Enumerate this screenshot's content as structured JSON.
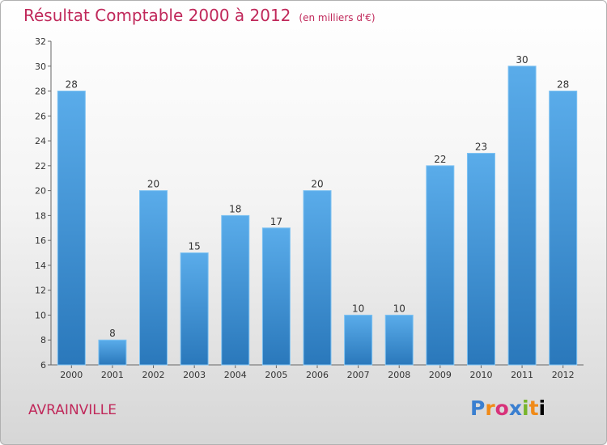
{
  "chart_data": {
    "type": "bar",
    "title": "Résultat Comptable 2000 à 2012",
    "subtitle": "(en milliers d'€)",
    "categories": [
      "2000",
      "2001",
      "2002",
      "2003",
      "2004",
      "2005",
      "2006",
      "2007",
      "2008",
      "2009",
      "2010",
      "2011",
      "2012"
    ],
    "values": [
      28,
      8,
      20,
      15,
      18,
      17,
      20,
      10,
      10,
      22,
      23,
      30,
      28
    ],
    "ylim": [
      6,
      32
    ],
    "yticks": [
      6,
      8,
      10,
      12,
      14,
      16,
      18,
      20,
      22,
      24,
      26,
      28,
      30,
      32
    ],
    "grid": false,
    "bar_color": "#4a9fdf"
  },
  "footer": {
    "commune": "AVRAINVILLE",
    "logo_letters": [
      "P",
      "r",
      "o",
      "x",
      "i",
      "t",
      "i"
    ]
  }
}
